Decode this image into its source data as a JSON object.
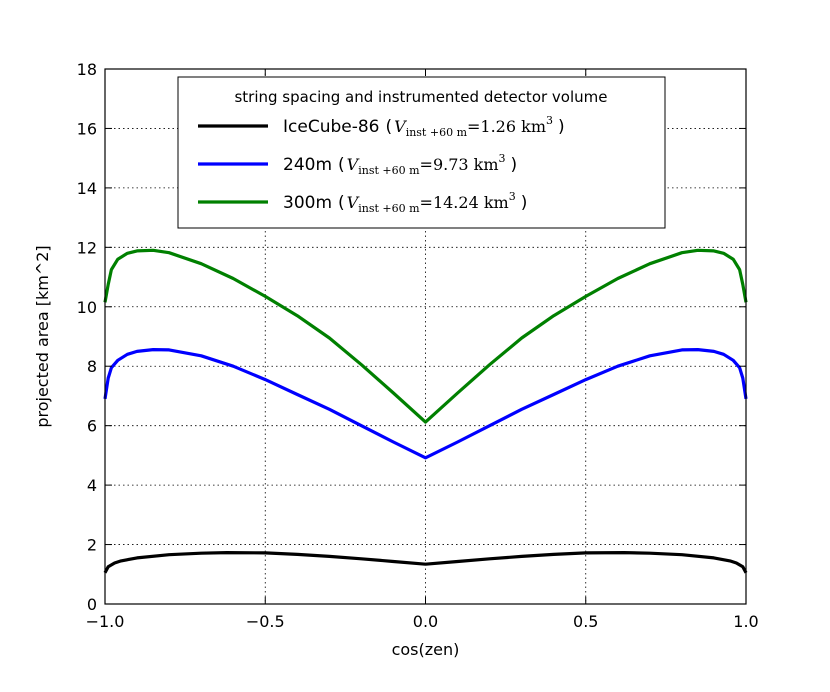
{
  "chart_data": {
    "type": "line",
    "title": "",
    "xlabel": "cos(zen)",
    "ylabel": "projected area [km^2]",
    "xlim": [
      -1.0,
      1.0
    ],
    "ylim": [
      0,
      18
    ],
    "grid": true,
    "x_ticks": [
      "−1.0",
      "−0.5",
      "0.0",
      "0.5",
      "1.0"
    ],
    "x_tick_values": [
      -1.0,
      -0.5,
      0.0,
      0.5,
      1.0
    ],
    "y_ticks": [
      "0",
      "2",
      "4",
      "6",
      "8",
      "10",
      "12",
      "14",
      "16",
      "18"
    ],
    "y_tick_values": [
      0,
      2,
      4,
      6,
      8,
      10,
      12,
      14,
      16,
      18
    ],
    "legend": {
      "title": "string spacing and instrumented detector volume",
      "placement": "upper-center"
    },
    "series": [
      {
        "name": "IceCube-86",
        "color": "#000000",
        "volume_label": "V",
        "volume_sub": "inst +60 m",
        "volume_value": "=1.26 km",
        "volume_sup": "3",
        "x": [
          -1.0,
          -0.99,
          -0.97,
          -0.95,
          -0.9,
          -0.8,
          -0.7,
          -0.62,
          -0.5,
          -0.4,
          -0.3,
          -0.2,
          -0.1,
          0.0,
          0.1,
          0.2,
          0.3,
          0.4,
          0.5,
          0.62,
          0.7,
          0.8,
          0.9,
          0.95,
          0.97,
          0.99,
          1.0
        ],
        "y": [
          1.05,
          1.25,
          1.38,
          1.45,
          1.55,
          1.66,
          1.71,
          1.73,
          1.72,
          1.67,
          1.6,
          1.52,
          1.43,
          1.34,
          1.43,
          1.52,
          1.6,
          1.67,
          1.72,
          1.73,
          1.71,
          1.66,
          1.55,
          1.45,
          1.38,
          1.25,
          1.05
        ]
      },
      {
        "name": "240m",
        "color": "#0000ff",
        "volume_label": "V",
        "volume_sub": "inst +60 m",
        "volume_value": "=9.73 km",
        "volume_sup": "3",
        "x": [
          -1.0,
          -0.99,
          -0.98,
          -0.96,
          -0.93,
          -0.9,
          -0.85,
          -0.8,
          -0.7,
          -0.6,
          -0.5,
          -0.4,
          -0.3,
          -0.2,
          -0.1,
          0.0,
          0.1,
          0.2,
          0.3,
          0.4,
          0.5,
          0.6,
          0.7,
          0.8,
          0.85,
          0.9,
          0.93,
          0.96,
          0.98,
          0.99,
          1.0
        ],
        "y": [
          6.9,
          7.6,
          7.95,
          8.2,
          8.4,
          8.5,
          8.56,
          8.55,
          8.35,
          8.0,
          7.55,
          7.05,
          6.55,
          6.0,
          5.45,
          4.92,
          5.45,
          6.0,
          6.55,
          7.05,
          7.55,
          8.0,
          8.35,
          8.55,
          8.56,
          8.5,
          8.4,
          8.2,
          7.95,
          7.6,
          6.9
        ]
      },
      {
        "name": "300m",
        "color": "#008000",
        "volume_label": "V",
        "volume_sub": "inst +60 m",
        "volume_value": "=14.24 km",
        "volume_sup": "3",
        "x": [
          -1.0,
          -0.99,
          -0.98,
          -0.96,
          -0.93,
          -0.9,
          -0.85,
          -0.8,
          -0.7,
          -0.6,
          -0.5,
          -0.4,
          -0.3,
          -0.2,
          -0.1,
          0.0,
          0.1,
          0.2,
          0.3,
          0.4,
          0.5,
          0.6,
          0.7,
          0.8,
          0.85,
          0.9,
          0.93,
          0.96,
          0.98,
          0.99,
          1.0
        ],
        "y": [
          10.15,
          10.75,
          11.25,
          11.6,
          11.8,
          11.88,
          11.9,
          11.82,
          11.45,
          10.95,
          10.35,
          9.7,
          8.95,
          8.05,
          7.1,
          6.12,
          7.1,
          8.05,
          8.95,
          9.7,
          10.35,
          10.95,
          11.45,
          11.82,
          11.9,
          11.88,
          11.8,
          11.6,
          11.25,
          10.75,
          10.15
        ]
      }
    ]
  }
}
